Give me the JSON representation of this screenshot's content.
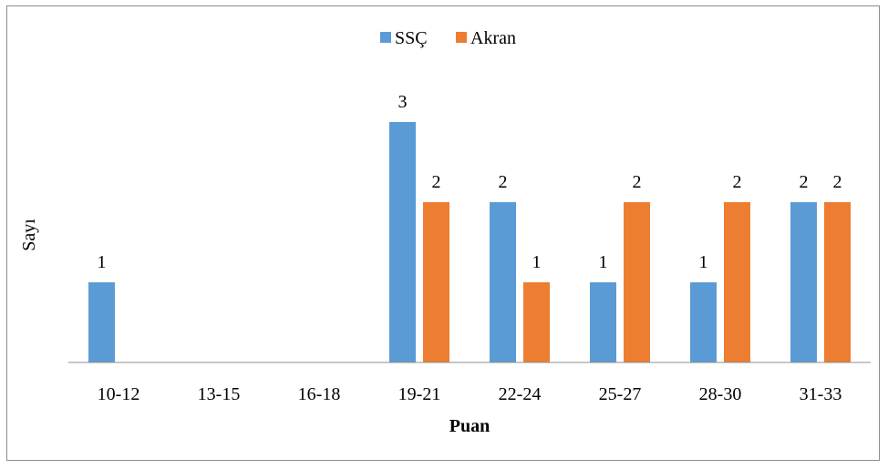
{
  "chart_data": {
    "type": "bar",
    "categories": [
      "10-12",
      "13-15",
      "16-18",
      "19-21",
      "22-24",
      "25-27",
      "28-30",
      "31-33"
    ],
    "series": [
      {
        "name": "SSÇ",
        "values": [
          1,
          0,
          0,
          3,
          2,
          1,
          1,
          2
        ],
        "color": "#5b9bd5"
      },
      {
        "name": "Akran",
        "values": [
          0,
          0,
          0,
          2,
          1,
          2,
          2,
          2
        ],
        "color": "#ed7d31"
      }
    ],
    "xlabel": "Puan",
    "ylabel": "Sayı",
    "ylim": [
      0,
      3
    ],
    "grid": false,
    "legend_position": "top-center",
    "data_labels": true
  }
}
